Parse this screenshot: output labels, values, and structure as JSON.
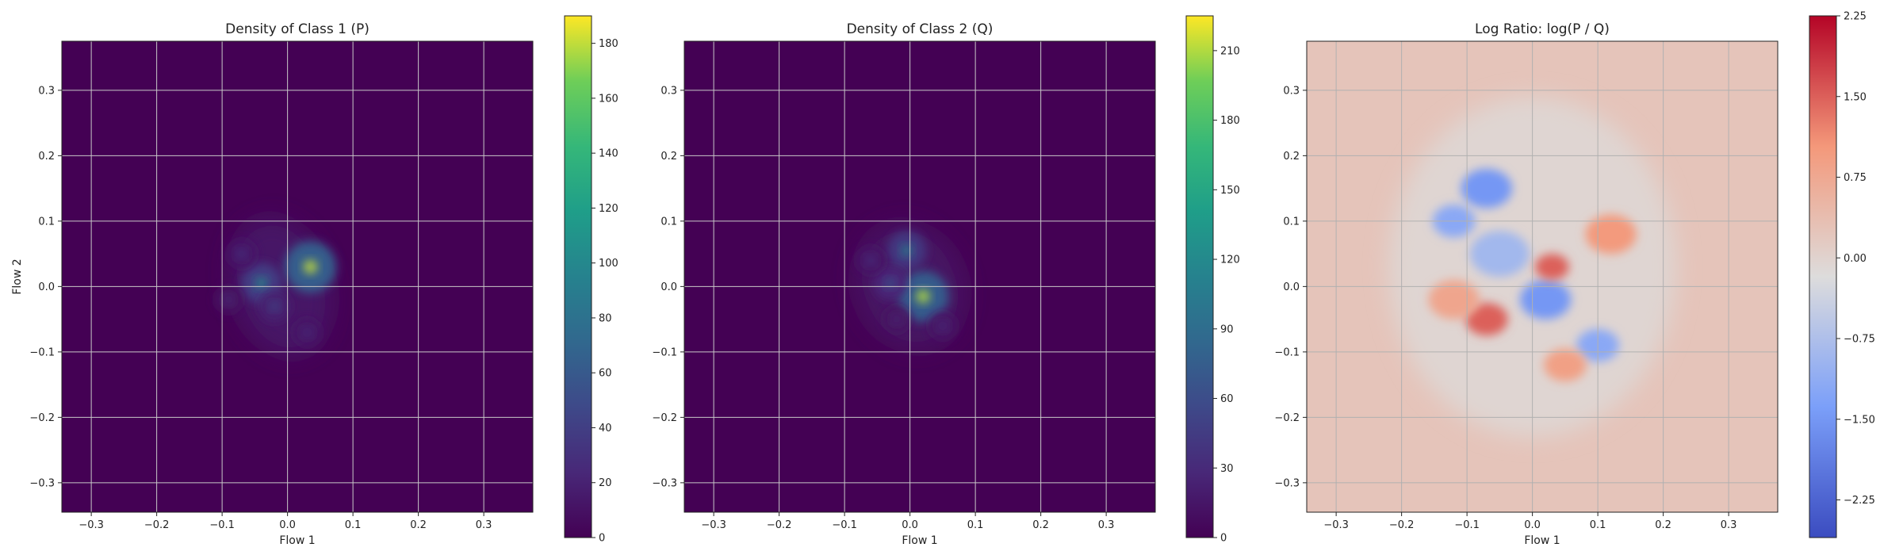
{
  "chart_data": [
    {
      "type": "heatmap",
      "title": "Density of Class 1 (P)",
      "xlabel": "Flow 1",
      "ylabel": "Flow 2",
      "xlim": [
        -0.345,
        0.375
      ],
      "ylim": [
        -0.345,
        0.375
      ],
      "x_ticks": [
        -0.3,
        -0.2,
        -0.1,
        0.0,
        0.1,
        0.2,
        0.3
      ],
      "y_ticks": [
        -0.3,
        -0.2,
        -0.1,
        0.0,
        0.1,
        0.2,
        0.3
      ],
      "grid": true,
      "colormap": "viridis",
      "colorbar_range": [
        0,
        190
      ],
      "colorbar_ticks": [
        0,
        20,
        40,
        60,
        80,
        100,
        120,
        140,
        160,
        180
      ],
      "blob": {
        "center": [
          -0.01,
          0.0
        ],
        "spread": [
          0.06,
          0.06
        ],
        "tilt": -0.6,
        "base_level": 12
      },
      "peaks": [
        {
          "x": 0.035,
          "y": 0.03,
          "value": 180
        },
        {
          "x": -0.04,
          "y": 0.005,
          "value": 110
        },
        {
          "x": -0.02,
          "y": -0.03,
          "value": 55
        },
        {
          "x": -0.07,
          "y": 0.05,
          "value": 40
        },
        {
          "x": 0.03,
          "y": -0.07,
          "value": 35
        },
        {
          "x": -0.09,
          "y": -0.02,
          "value": 30
        }
      ]
    },
    {
      "type": "heatmap",
      "title": "Density of Class 2 (Q)",
      "xlabel": "Flow 1",
      "ylabel": "",
      "xlim": [
        -0.345,
        0.375
      ],
      "ylim": [
        -0.345,
        0.375
      ],
      "x_ticks": [
        -0.3,
        -0.2,
        -0.1,
        0.0,
        0.1,
        0.2,
        0.3
      ],
      "y_ticks": [
        -0.3,
        -0.2,
        -0.1,
        0.0,
        0.1,
        0.2,
        0.3
      ],
      "grid": true,
      "colormap": "viridis",
      "colorbar_range": [
        0,
        225
      ],
      "colorbar_ticks": [
        0,
        30,
        60,
        90,
        120,
        150,
        180,
        210
      ],
      "blob": {
        "center": [
          0.0,
          0.0
        ],
        "spread": [
          0.065,
          0.055
        ],
        "tilt": -0.8,
        "base_level": 12
      },
      "peaks": [
        {
          "x": 0.02,
          "y": -0.015,
          "value": 210
        },
        {
          "x": -0.005,
          "y": 0.055,
          "value": 120
        },
        {
          "x": -0.03,
          "y": 0.005,
          "value": 80
        },
        {
          "x": -0.06,
          "y": 0.04,
          "value": 45
        },
        {
          "x": 0.05,
          "y": -0.06,
          "value": 40
        },
        {
          "x": -0.02,
          "y": -0.05,
          "value": 35
        }
      ]
    },
    {
      "type": "heatmap",
      "title": "Log Ratio: log(P / Q)",
      "xlabel": "Flow 1",
      "ylabel": "",
      "xlim": [
        -0.345,
        0.375
      ],
      "ylim": [
        -0.345,
        0.375
      ],
      "x_ticks": [
        -0.3,
        -0.2,
        -0.1,
        0.0,
        0.1,
        0.2,
        0.3
      ],
      "y_ticks": [
        -0.3,
        -0.2,
        -0.1,
        0.0,
        0.1,
        0.2,
        0.3
      ],
      "grid": true,
      "colormap": "coolwarm",
      "colorbar_range": [
        -2.6,
        2.25
      ],
      "colorbar_ticks": [
        -2.25,
        -1.5,
        -0.75,
        0.0,
        0.75,
        1.5,
        2.25
      ],
      "colorbar_tick_labels": [
        "−2.25",
        "−1.50",
        "−0.75",
        "0.00",
        "0.75",
        "1.50",
        "2.25"
      ],
      "background_level": 0.25,
      "features": [
        {
          "x": -0.07,
          "y": 0.15,
          "value": -1.5,
          "spread": 0.03
        },
        {
          "x": -0.12,
          "y": 0.1,
          "value": -1.2,
          "spread": 0.025
        },
        {
          "x": 0.02,
          "y": -0.02,
          "value": -1.5,
          "spread": 0.03
        },
        {
          "x": 0.1,
          "y": -0.09,
          "value": -1.2,
          "spread": 0.025
        },
        {
          "x": -0.05,
          "y": 0.05,
          "value": -0.9,
          "spread": 0.035
        },
        {
          "x": -0.07,
          "y": -0.05,
          "value": 1.5,
          "spread": 0.025
        },
        {
          "x": 0.03,
          "y": 0.03,
          "value": 1.5,
          "spread": 0.02
        },
        {
          "x": 0.12,
          "y": 0.08,
          "value": 1.0,
          "spread": 0.03
        },
        {
          "x": 0.05,
          "y": -0.12,
          "value": 0.9,
          "spread": 0.025
        },
        {
          "x": -0.12,
          "y": -0.02,
          "value": 0.8,
          "spread": 0.03
        }
      ]
    }
  ]
}
